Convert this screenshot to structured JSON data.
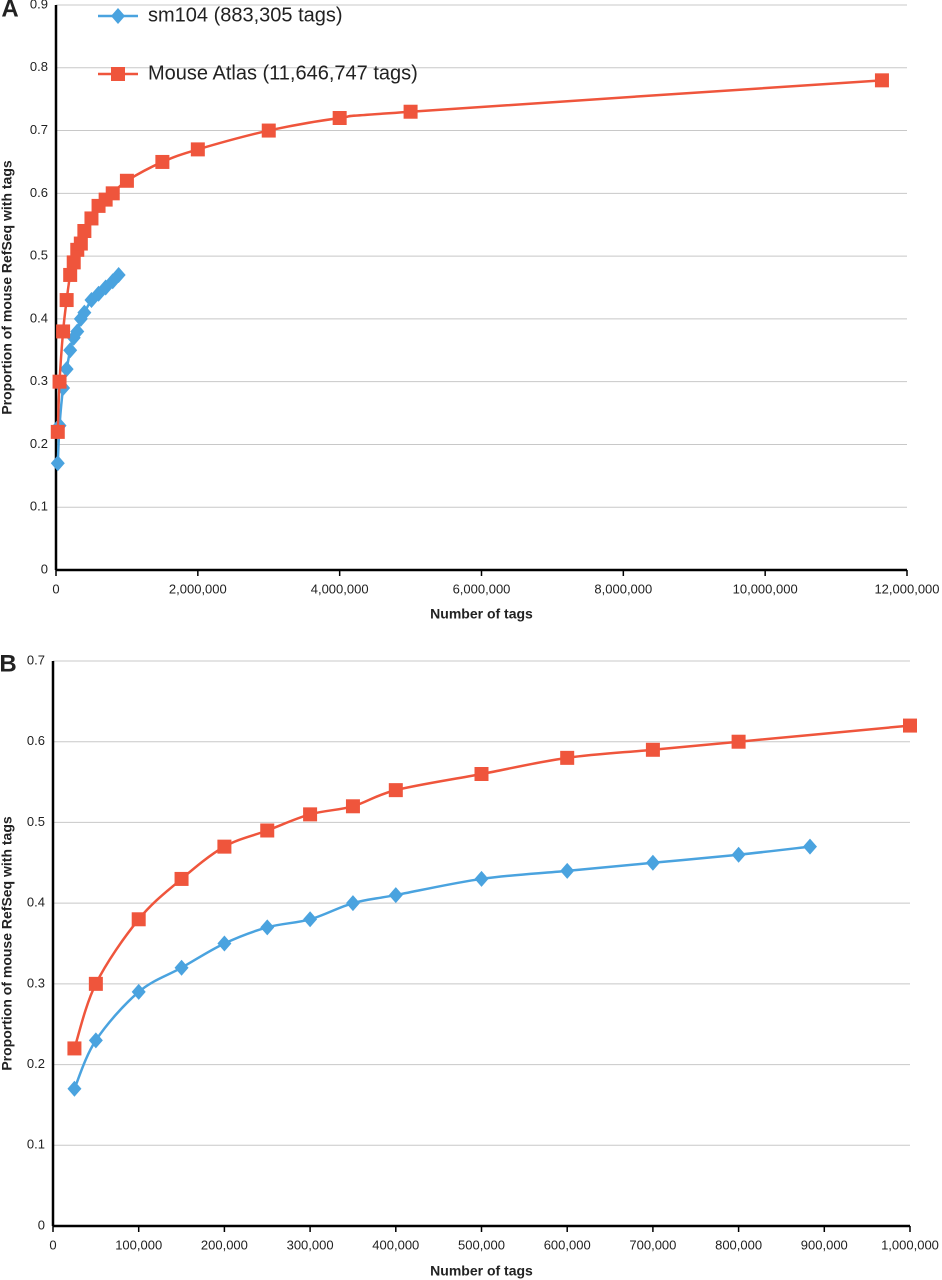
{
  "chart_data": [
    {
      "type": "line",
      "panel_label": "A",
      "x_label": "Number of tags",
      "y_label": "Proportion of mouse RefSeq with tags",
      "xlim": [
        0,
        12000000
      ],
      "xticks": [
        0,
        {
          "value": 2000000,
          "label": "2,000,000"
        },
        {
          "value": 4000000,
          "label": "4,000,000"
        },
        {
          "value": 6000000,
          "label": "6,000,000"
        },
        {
          "value": 8000000,
          "label": "8,000,000"
        },
        {
          "value": 10000000,
          "label": "10,000,000"
        },
        {
          "value": 12000000,
          "label": "12,000,000"
        }
      ],
      "ylim": [
        0,
        0.9
      ],
      "yticks": [
        0,
        0.1,
        0.2,
        0.3,
        0.4,
        0.5,
        0.6,
        0.7,
        0.8,
        0.9
      ],
      "grid": true,
      "legend": "top-left",
      "series": [
        {
          "name": "sm104 (883,305 tags)",
          "color": "#4aa3df",
          "marker": "diamond",
          "x": [
            25000,
            50000,
            100000,
            150000,
            200000,
            250000,
            300000,
            350000,
            400000,
            500000,
            600000,
            700000,
            800000,
            883305
          ],
          "values": [
            0.17,
            0.23,
            0.29,
            0.32,
            0.35,
            0.37,
            0.38,
            0.4,
            0.41,
            0.43,
            0.44,
            0.45,
            0.46,
            0.47
          ]
        },
        {
          "name": "Mouse Atlas (11,646,747 tags)",
          "color": "#ef553c",
          "marker": "square",
          "x": [
            25000,
            50000,
            100000,
            150000,
            200000,
            250000,
            300000,
            350000,
            400000,
            500000,
            600000,
            700000,
            800000,
            1000000,
            1500000,
            2000000,
            3000000,
            4000000,
            5000000,
            11646747
          ],
          "values": [
            0.22,
            0.3,
            0.38,
            0.43,
            0.47,
            0.49,
            0.51,
            0.52,
            0.54,
            0.56,
            0.58,
            0.59,
            0.6,
            0.62,
            0.65,
            0.67,
            0.7,
            0.72,
            0.73,
            0.78
          ]
        }
      ]
    },
    {
      "type": "line",
      "panel_label": "B",
      "x_label": "Number of tags",
      "y_label": "Proportion of mouse RefSeq with tags",
      "xlim": [
        0,
        1000000
      ],
      "xticks": [
        0,
        {
          "value": 100000,
          "label": "100,000"
        },
        {
          "value": 200000,
          "label": "200,000"
        },
        {
          "value": 300000,
          "label": "300,000"
        },
        {
          "value": 400000,
          "label": "400,000"
        },
        {
          "value": 500000,
          "label": "500,000"
        },
        {
          "value": 600000,
          "label": "600,000"
        },
        {
          "value": 700000,
          "label": "700,000"
        },
        {
          "value": 800000,
          "label": "800,000"
        },
        {
          "value": 900000,
          "label": "900,000"
        },
        {
          "value": 1000000,
          "label": "1,000,000"
        }
      ],
      "ylim": [
        0,
        0.7
      ],
      "yticks": [
        0,
        0.1,
        0.2,
        0.3,
        0.4,
        0.5,
        0.6,
        0.7
      ],
      "grid": true,
      "series": [
        {
          "color": "#4aa3df",
          "marker": "diamond",
          "x": [
            25000,
            50000,
            100000,
            150000,
            200000,
            250000,
            300000,
            350000,
            400000,
            500000,
            600000,
            700000,
            800000,
            883305
          ],
          "values": [
            0.17,
            0.23,
            0.29,
            0.32,
            0.35,
            0.37,
            0.38,
            0.4,
            0.41,
            0.43,
            0.44,
            0.45,
            0.46,
            0.47
          ]
        },
        {
          "color": "#ef553c",
          "marker": "square",
          "x": [
            25000,
            50000,
            100000,
            150000,
            200000,
            250000,
            300000,
            350000,
            400000,
            500000,
            600000,
            700000,
            800000,
            1000000
          ],
          "values": [
            0.22,
            0.3,
            0.38,
            0.43,
            0.47,
            0.49,
            0.51,
            0.52,
            0.54,
            0.56,
            0.58,
            0.59,
            0.6,
            0.62
          ]
        }
      ]
    }
  ]
}
